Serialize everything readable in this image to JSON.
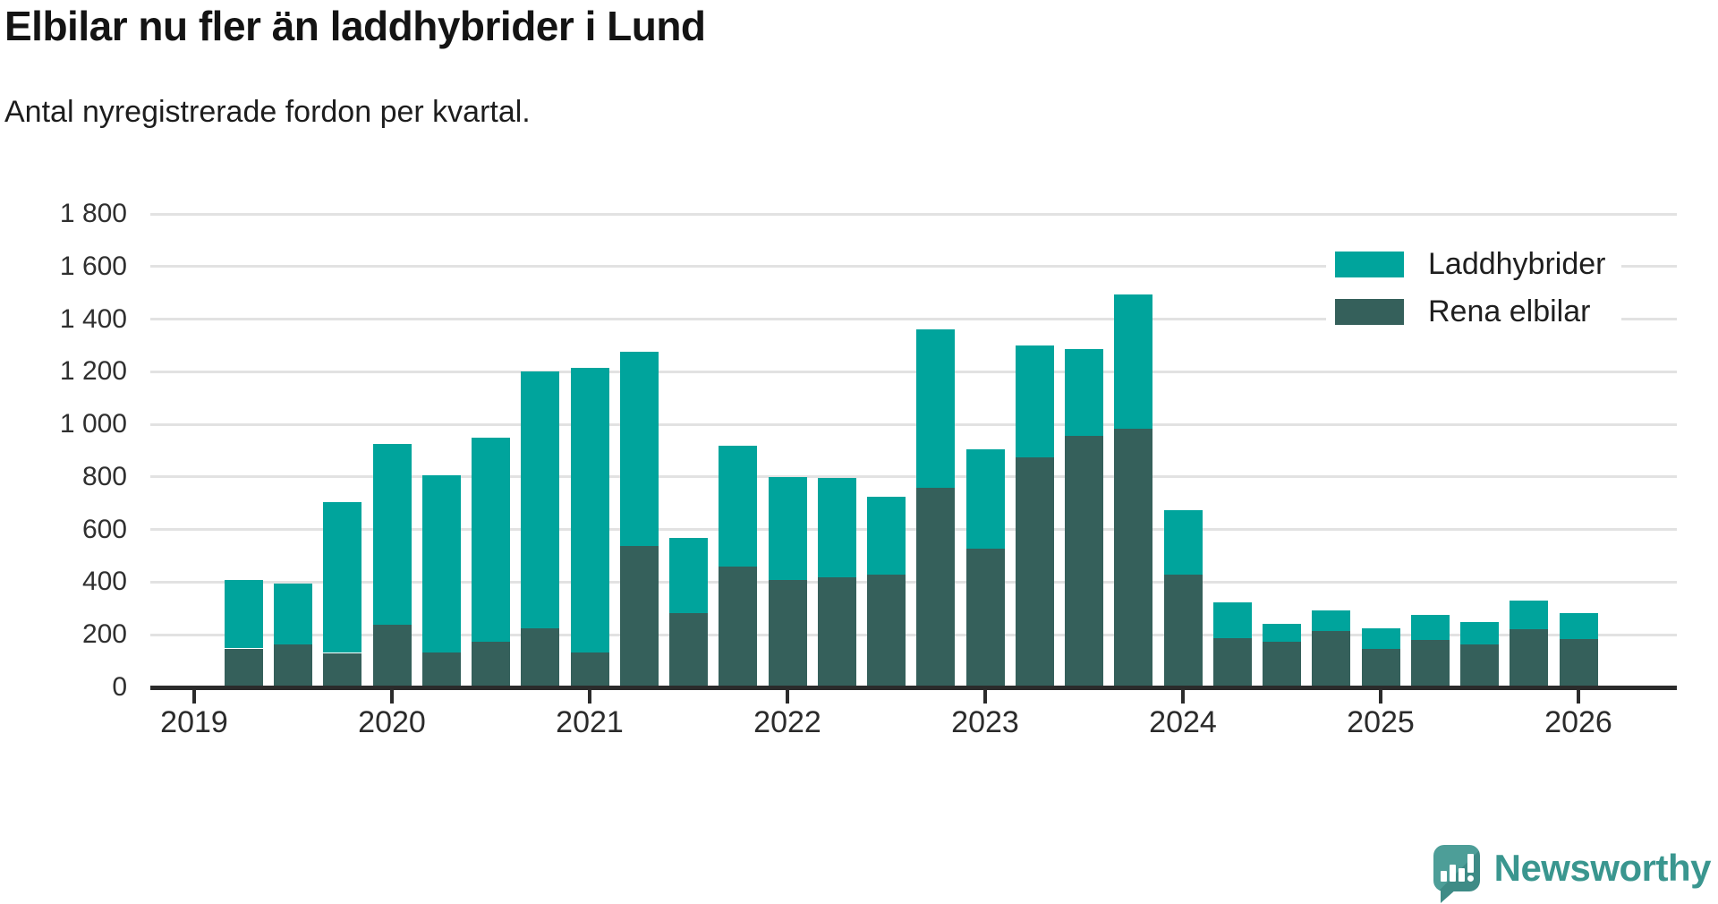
{
  "header": {
    "title": "Elbilar nu fler än laddhybrider i Lund",
    "subtitle": "Antal nyregistrerade fordon per kvartal."
  },
  "legend": {
    "items": [
      {
        "label": "Laddhybrider",
        "color": "#00a49c"
      },
      {
        "label": "Rena elbilar",
        "color": "#35605b"
      }
    ]
  },
  "branding": {
    "name": "Newsworthy"
  },
  "colors": {
    "laddhybrider": "#00a49c",
    "rena_elbilar": "#35605b",
    "gridline": "#e2e2e2",
    "axis": "#2b2b2b",
    "background": "#ffffff",
    "logo_teal": "#4d9e98",
    "logo_text": "#3a968f"
  },
  "chart_data": {
    "type": "bar",
    "stacked": true,
    "title": "Elbilar nu fler än laddhybrider i Lund",
    "subtitle": "Antal nyregistrerade fordon per kvartal.",
    "xlabel": "",
    "ylabel": "Antal nyregistrerade fordon per kvartal",
    "ylim": [
      0,
      1800
    ],
    "grid": "horizontal",
    "legend_position": "top-right",
    "x": [
      "2019 Q2",
      "2019 Q3",
      "2019 Q4",
      "2020 Q1",
      "2020 Q2",
      "2020 Q3",
      "2020 Q4",
      "2021 Q1",
      "2021 Q2",
      "2021 Q3",
      "2021 Q4",
      "2022 Q1",
      "2022 Q2",
      "2022 Q3",
      "2022 Q4",
      "2023 Q1",
      "2023 Q2",
      "2023 Q3",
      "2023 Q4",
      "2024 Q1",
      "2024 Q2",
      "2024 Q3",
      "2024 Q4",
      "2025 Q1",
      "2025 Q2",
      "2025 Q3",
      "2025 Q4",
      "2026 Q1"
    ],
    "series": [
      {
        "name": "Rena elbilar",
        "color": "#35605b",
        "stack_order": "bottom",
        "values": [
          148,
          165,
          131,
          239,
          132,
          174,
          225,
          132,
          538,
          284,
          460,
          407,
          417,
          428,
          760,
          528,
          876,
          955,
          985,
          430,
          188,
          175,
          215,
          145,
          180,
          164,
          221,
          184
        ]
      },
      {
        "name": "Laddhybrider",
        "color": "#00a49c",
        "stack_order": "top",
        "values": [
          262,
          230,
          574,
          686,
          673,
          776,
          975,
          1083,
          737,
          284,
          460,
          393,
          378,
          297,
          602,
          377,
          424,
          330,
          508,
          243,
          134,
          65,
          79,
          78,
          95,
          86,
          110,
          100
        ]
      }
    ],
    "totals": [
      410,
      395,
      705,
      925,
      805,
      950,
      1200,
      1215,
      1275,
      568,
      920,
      800,
      795,
      725,
      1362,
      905,
      1300,
      1285,
      1493,
      673,
      322,
      240,
      294,
      223,
      275,
      250,
      331,
      284
    ],
    "y_ticks": [
      {
        "value": 0,
        "label": "0"
      },
      {
        "value": 200,
        "label": "200"
      },
      {
        "value": 400,
        "label": "400"
      },
      {
        "value": 600,
        "label": "600"
      },
      {
        "value": 800,
        "label": "800"
      },
      {
        "value": 1000,
        "label": "1 000"
      },
      {
        "value": 1200,
        "label": "1 200"
      },
      {
        "value": 1400,
        "label": "1 400"
      },
      {
        "value": 1600,
        "label": "1 600"
      },
      {
        "value": 1800,
        "label": "1 800"
      }
    ],
    "x_year_ticks": [
      "2019",
      "2020",
      "2021",
      "2022",
      "2023",
      "2024",
      "2025",
      "2026"
    ]
  }
}
